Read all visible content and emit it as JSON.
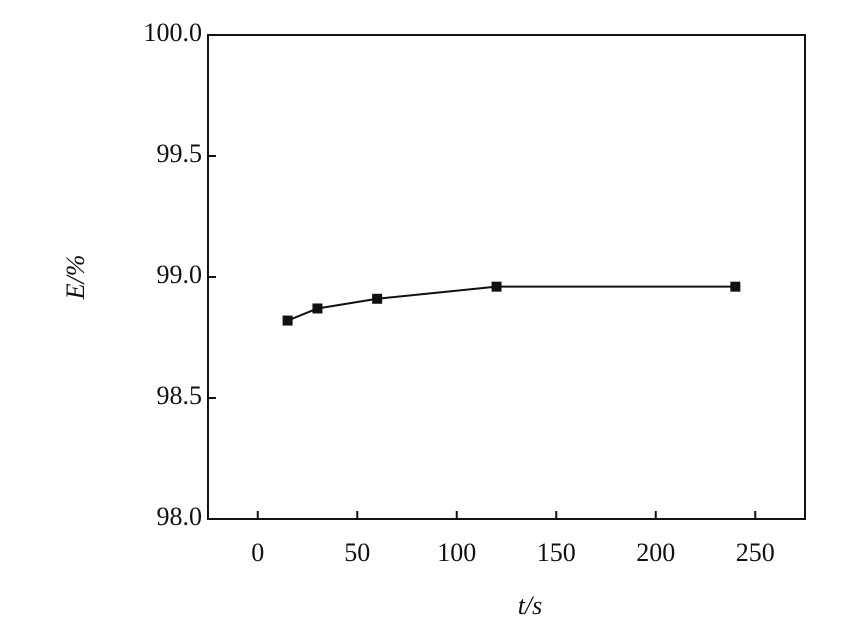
{
  "chart_data": {
    "type": "line",
    "x_label": "t/s",
    "y_label": "E/%",
    "x": [
      15,
      30,
      60,
      120,
      240
    ],
    "series": [
      {
        "color": "#111111",
        "values": [
          98.82,
          98.87,
          98.91,
          98.96,
          98.96
        ]
      }
    ],
    "xlim": [
      -25,
      275
    ],
    "xticks": [
      0,
      50,
      100,
      150,
      200,
      250
    ],
    "ylim": [
      98,
      100
    ],
    "yticks": [
      {
        "value": 98,
        "label": "98.0"
      },
      {
        "value": 98.5,
        "label": "98.5"
      },
      {
        "value": 99,
        "label": "99.0"
      },
      {
        "value": 99.5,
        "label": "99.5"
      },
      {
        "value": 100,
        "label": "100.0"
      }
    ]
  }
}
